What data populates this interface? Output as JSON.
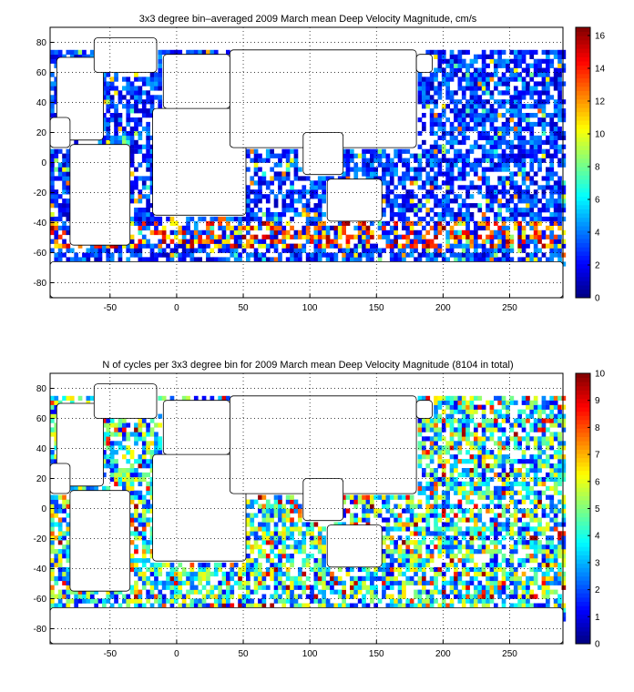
{
  "chart_data": [
    {
      "type": "heatmap",
      "title": "3x3 degree bin–averaged 2009 March mean Deep Velocity Magnitude, cm/s",
      "xlabel": "",
      "ylabel": "",
      "xlim": [
        -95,
        290
      ],
      "ylim": [
        -90,
        90
      ],
      "x_ticks": [
        -50,
        0,
        50,
        100,
        150,
        200,
        250
      ],
      "y_ticks": [
        80,
        60,
        40,
        20,
        0,
        -20,
        -40,
        -60,
        -80
      ],
      "colorbar": {
        "min": 0,
        "max": 16.5,
        "ticks": [
          0,
          2,
          4,
          6,
          8,
          10,
          12,
          14,
          16
        ],
        "colormap": "jet"
      },
      "bin_size_deg": 3,
      "grid": true
    },
    {
      "type": "heatmap",
      "title": "N of cycles per 3x3 degree bin for 2009 March mean Deep Velocity Magnitude (8104 in total)",
      "xlabel": "",
      "ylabel": "",
      "xlim": [
        -95,
        290
      ],
      "ylim": [
        -90,
        90
      ],
      "x_ticks": [
        -50,
        0,
        50,
        100,
        150,
        200,
        250
      ],
      "y_ticks": [
        80,
        60,
        40,
        20,
        0,
        -20,
        -40,
        -60,
        -80
      ],
      "colorbar": {
        "min": 0,
        "max": 10,
        "ticks": [
          0,
          1,
          2,
          3,
          4,
          5,
          6,
          7,
          8,
          9,
          10
        ],
        "colormap": "jet"
      },
      "bin_size_deg": 3,
      "grid": true
    }
  ]
}
